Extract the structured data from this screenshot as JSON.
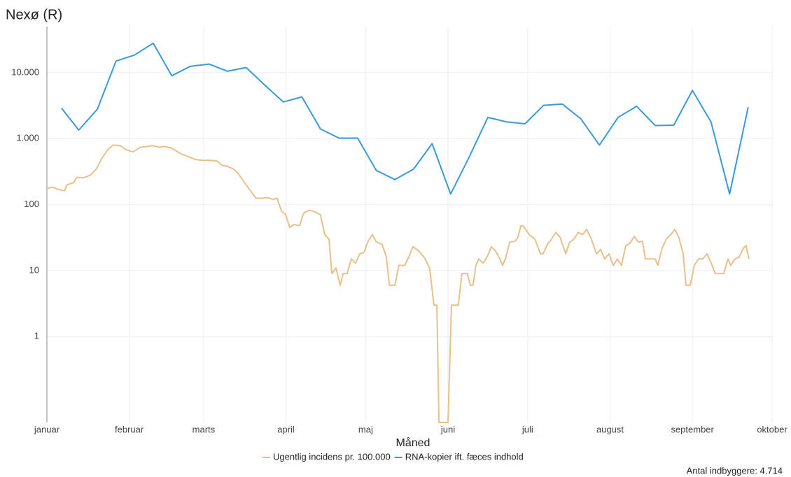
{
  "chart_data": {
    "type": "line",
    "title": "Nexø (R)",
    "x_label": "Måned",
    "note": "Antal indbyggere: 4.714",
    "log_y": true,
    "grid": true,
    "legend": "bottom",
    "xlim": [
      0,
      273
    ],
    "ylim": [
      0.05,
      50000
    ],
    "xticks": [
      {
        "value": 0,
        "label": "januar"
      },
      {
        "value": 31,
        "label": "februar"
      },
      {
        "value": 59,
        "label": "marts"
      },
      {
        "value": 90,
        "label": "april"
      },
      {
        "value": 120,
        "label": "maj"
      },
      {
        "value": 151,
        "label": "juni"
      },
      {
        "value": 181,
        "label": "juli"
      },
      {
        "value": 212,
        "label": "august"
      },
      {
        "value": 243,
        "label": "september"
      },
      {
        "value": 273,
        "label": "oktober"
      }
    ],
    "yticks": [
      1,
      10,
      100,
      {
        "value": 1000,
        "label": "1.000"
      },
      {
        "value": 10000,
        "label": "10.000"
      }
    ],
    "series": [
      {
        "name": "Ugentlig incidens pr. 100.000",
        "color": "#e8c08a",
        "x": [
          0,
          2.1,
          4.2,
          6.6,
          7.6,
          10,
          11.3,
          13.4,
          15,
          16.6,
          18.7,
          20.6,
          23.2,
          25,
          27.7,
          29.8,
          32.4,
          35.1,
          37.7,
          39.8,
          42.4,
          44.3,
          46.9,
          48.7,
          50.9,
          53.5,
          56.1,
          58.8,
          61.4,
          64,
          66.1,
          68,
          70.1,
          71.9,
          74.6,
          76.7,
          78.8,
          80.9,
          83,
          85.1,
          86.7,
          88.3,
          89.9,
          91.4,
          93,
          95.1,
          96.7,
          98.8,
          100.9,
          103,
          104.6,
          106.2,
          107.3,
          108.8,
          110.4,
          111.5,
          113,
          114.6,
          116.2,
          117.8,
          119.4,
          120.9,
          122.5,
          124.1,
          126.2,
          127.8,
          128.9,
          131,
          132.5,
          134.7,
          136.2,
          137.8,
          139.9,
          142,
          144.1,
          145.7,
          146.8,
          147.6,
          151,
          152.3,
          154.9,
          156.2,
          158.3,
          159.4,
          160.4,
          161.5,
          162.5,
          164.2,
          165.7,
          167.3,
          168.9,
          170.5,
          171.5,
          172.6,
          174.2,
          176.3,
          177.3,
          178.4,
          179.4,
          181.6,
          183.7,
          185.8,
          186.8,
          188.4,
          190,
          191.6,
          193.2,
          195.3,
          196.8,
          198.4,
          200,
          201.6,
          203.2,
          204.7,
          206.9,
          208.4,
          210,
          211.6,
          213.2,
          214.8,
          216.3,
          217.9,
          219.5,
          221.1,
          222.7,
          224.2,
          225.3,
          227.4,
          229,
          230,
          231.6,
          233.2,
          234.8,
          236.4,
          237.9,
          239.5,
          240.6,
          242.2,
          243.7,
          245.3,
          246.9,
          248.5,
          250.1,
          251.6,
          253.2,
          254.8,
          256.4,
          257.4,
          259,
          260.6,
          262.2,
          263.2,
          264.3
        ],
        "values": [
          175,
          185,
          170,
          162,
          200,
          215,
          260,
          255,
          265,
          285,
          350,
          500,
          700,
          800,
          780,
          680,
          630,
          740,
          760,
          780,
          740,
          760,
          720,
          650,
          580,
          530,
          480,
          470,
          470,
          460,
          390,
          380,
          350,
          300,
          210,
          160,
          125,
          125,
          128,
          120,
          125,
          80,
          70,
          45,
          50,
          48,
          75,
          82,
          78,
          70,
          35,
          30,
          9,
          11,
          6,
          9,
          9,
          15,
          13,
          18,
          19,
          28,
          35,
          27,
          25,
          16,
          6,
          6,
          12,
          12,
          16,
          23,
          20,
          16,
          11,
          3,
          3,
          0.05,
          0.05,
          3,
          3,
          9,
          9,
          6,
          6,
          12,
          15,
          13,
          16,
          23,
          20,
          15,
          12,
          15,
          27,
          28,
          32,
          48,
          47,
          35,
          30,
          18,
          18,
          25,
          30,
          38,
          32,
          18,
          27,
          30,
          38,
          35,
          42,
          32,
          18,
          21,
          15,
          18,
          12,
          15,
          12,
          24,
          26,
          33,
          27,
          28,
          15,
          15,
          15,
          12,
          22,
          30,
          35,
          42,
          32,
          18,
          6,
          6,
          12,
          15,
          15,
          18,
          13,
          9,
          9,
          9,
          15,
          12,
          15,
          16,
          22,
          24,
          15
        ]
      },
      {
        "name": "RNA-kopier ift. fæces indhold",
        "color": "#3a9ad9",
        "x": [
          5.5,
          12,
          19,
          26,
          33,
          40,
          47,
          54,
          61,
          68,
          75,
          82,
          89,
          96,
          103,
          110,
          117,
          124,
          131,
          138,
          145,
          152,
          159,
          166,
          173,
          180,
          187,
          194,
          201,
          208,
          215,
          222,
          229,
          236,
          243,
          250,
          257,
          264
        ],
        "values": [
          2900,
          1350,
          2800,
          15000,
          18500,
          28000,
          9000,
          12500,
          13500,
          10500,
          12000,
          6500,
          3600,
          4300,
          1400,
          1020,
          1020,
          330,
          240,
          345,
          840,
          145,
          530,
          2100,
          1800,
          1680,
          3200,
          3350,
          2000,
          800,
          2100,
          3100,
          1580,
          1600,
          5400,
          1800,
          145,
          3000
        ]
      }
    ]
  }
}
